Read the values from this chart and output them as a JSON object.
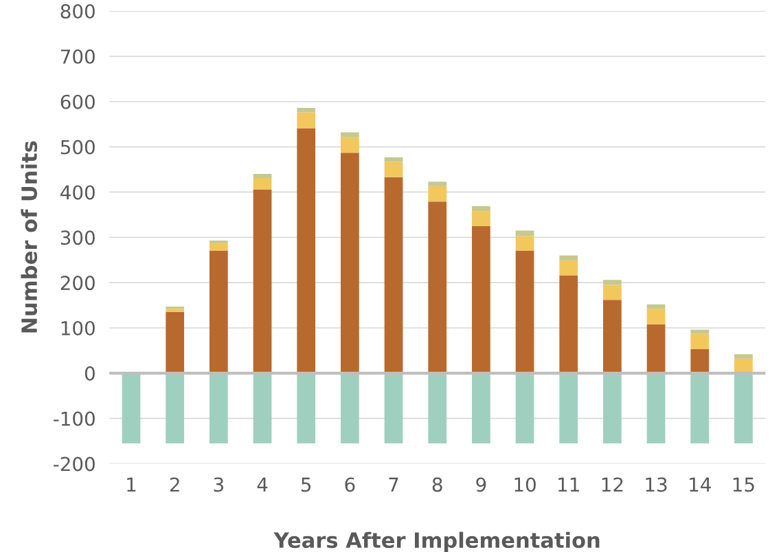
{
  "chart_data": {
    "type": "bar",
    "stacked": true,
    "xlabel": "Years After Implementation",
    "ylabel": "Number of Units",
    "categories": [
      "1",
      "2",
      "3",
      "4",
      "5",
      "6",
      "7",
      "8",
      "9",
      "10",
      "11",
      "12",
      "13",
      "14",
      "15"
    ],
    "series": [
      {
        "color": "#9fcfbf",
        "values": [
          -155,
          -155,
          -155,
          -155,
          -155,
          -155,
          -155,
          -155,
          -155,
          -155,
          -155,
          -155,
          -155,
          -155,
          -155
        ]
      },
      {
        "color": "#b8692e",
        "values": [
          0,
          135,
          271,
          406,
          541,
          487,
          433,
          379,
          325,
          271,
          216,
          162,
          108,
          53,
          0
        ]
      },
      {
        "color": "#f2c75c",
        "values": [
          0,
          7,
          16,
          25,
          35,
          34,
          34,
          34,
          33,
          32,
          33,
          33,
          34,
          34,
          32
        ]
      },
      {
        "color": "#c5c98f",
        "values": [
          0,
          5,
          6,
          9,
          10,
          11,
          10,
          10,
          11,
          12,
          11,
          11,
          10,
          9,
          10
        ]
      }
    ],
    "ylim": [
      -200,
      800
    ],
    "yticks": [
      -200,
      -100,
      0,
      100,
      200,
      300,
      400,
      500,
      600,
      700,
      800
    ],
    "grid": "y"
  }
}
